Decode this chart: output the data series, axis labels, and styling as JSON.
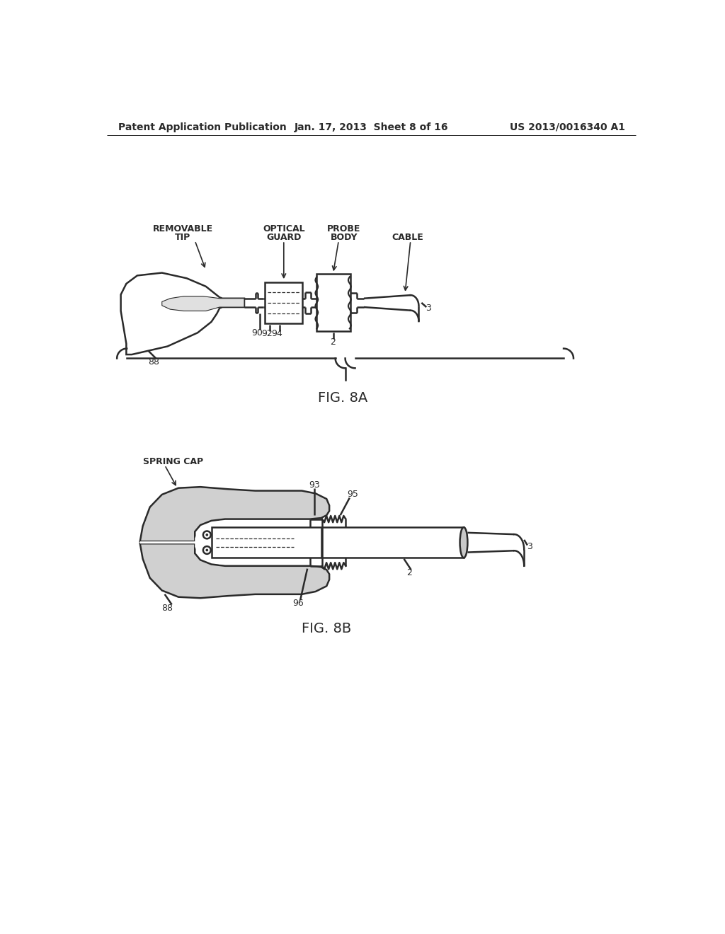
{
  "background_color": "#ffffff",
  "header_left": "Patent Application Publication",
  "header_mid": "Jan. 17, 2013  Sheet 8 of 16",
  "header_right": "US 2013/0016340 A1",
  "header_fontsize": 10,
  "fig8a_label": "FIG. 8A",
  "fig8b_label": "FIG. 8B",
  "line_color": "#2a2a2a",
  "line_width": 1.8,
  "thin_line": 1.0,
  "label_fontsize": 9,
  "fig_label_fontsize": 14
}
